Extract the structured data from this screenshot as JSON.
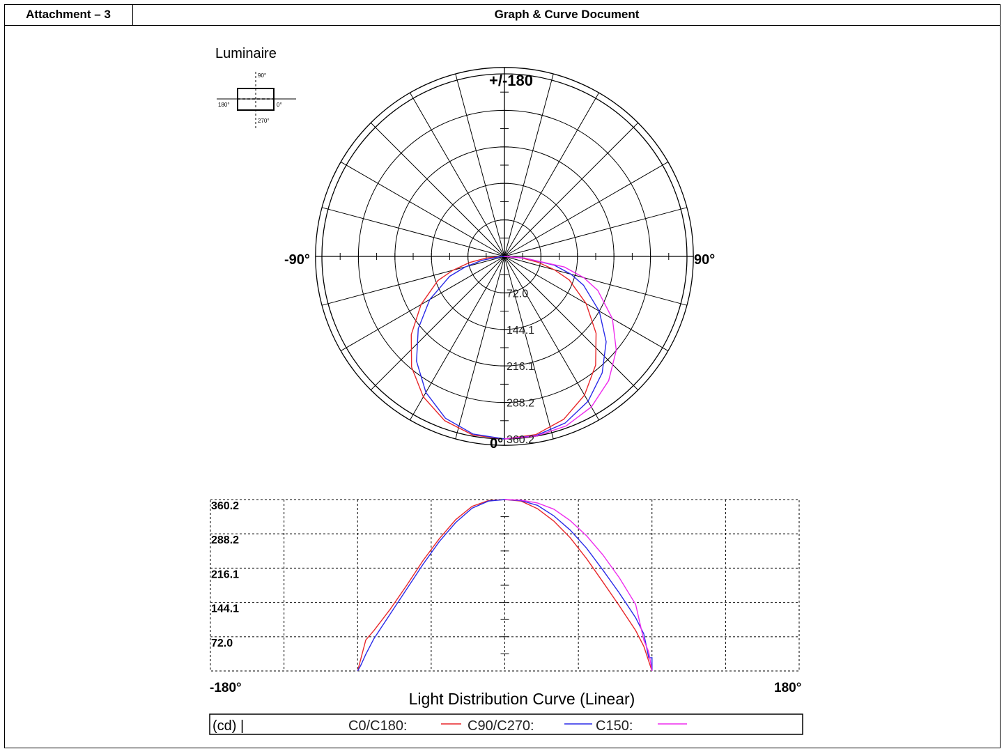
{
  "header": {
    "attachment": "Attachment – 3",
    "title": "Graph & Curve Document"
  },
  "luminaire": {
    "title": "Luminaire",
    "angles": [
      "90°",
      "180°",
      "0°",
      "270°"
    ]
  },
  "colors": {
    "c0_c180": "#e8272a",
    "c90_c270": "#2a2ae8",
    "c150": "#ee2bee"
  },
  "chart_data": [
    {
      "type": "polar",
      "name": "polar-intensity",
      "angle_labels": {
        "top": "+/-180",
        "left": "-90°",
        "right": "90°",
        "bottom": "0°"
      },
      "rings": [
        72.0,
        144.1,
        216.1,
        288.2,
        360.2
      ],
      "ring_labels": [
        "72.0",
        "144.1",
        "216.1",
        "288.2",
        "360.2"
      ],
      "spoke_step_deg": 15,
      "units": "cd",
      "series": [
        {
          "name": "C0/C180",
          "color_key": "c0_c180",
          "points": [
            [
              -90,
              0
            ],
            [
              -85,
              35
            ],
            [
              -80,
              70
            ],
            [
              -75,
              105
            ],
            [
              -70,
              140
            ],
            [
              -60,
              190
            ],
            [
              -50,
              240
            ],
            [
              -40,
              285
            ],
            [
              -30,
              320
            ],
            [
              -20,
              345
            ],
            [
              -10,
              358
            ],
            [
              0,
              360.2
            ],
            [
              10,
              357
            ],
            [
              20,
              342
            ],
            [
              30,
              316
            ],
            [
              40,
              280
            ],
            [
              50,
              236
            ],
            [
              60,
              186
            ],
            [
              70,
              136
            ],
            [
              75,
              102
            ],
            [
              80,
              68
            ],
            [
              85,
              34
            ],
            [
              90,
              0
            ]
          ]
        },
        {
          "name": "C90/C270",
          "color_key": "c90_c270",
          "points": [
            [
              -90,
              0
            ],
            [
              -85,
              10
            ],
            [
              -80,
              45
            ],
            [
              -75,
              80
            ],
            [
              -70,
              115
            ],
            [
              -60,
              170
            ],
            [
              -50,
              222
            ],
            [
              -40,
              270
            ],
            [
              -30,
              310
            ],
            [
              -20,
              340
            ],
            [
              -10,
              356
            ],
            [
              0,
              360.2
            ],
            [
              10,
              359
            ],
            [
              20,
              350
            ],
            [
              30,
              330
            ],
            [
              40,
              300
            ],
            [
              50,
              262
            ],
            [
              60,
              216
            ],
            [
              70,
              166
            ],
            [
              75,
              136
            ],
            [
              80,
              100
            ],
            [
              85,
              40
            ],
            [
              90,
              0
            ]
          ]
        },
        {
          "name": "C150",
          "color_key": "c150",
          "points": [
            [
              0,
              360.2
            ],
            [
              10,
              360
            ],
            [
              20,
              356
            ],
            [
              30,
              343
            ],
            [
              40,
              320
            ],
            [
              50,
              288
            ],
            [
              60,
              246
            ],
            [
              70,
              196
            ],
            [
              75,
              162
            ],
            [
              80,
              120
            ],
            [
              85,
              40
            ],
            [
              90,
              0
            ]
          ]
        }
      ]
    },
    {
      "type": "line",
      "name": "linear-distribution",
      "title": "Light Distribution Curve (Linear)",
      "xlabel_left": "-180°",
      "xlabel_right": "180°",
      "xlim": [
        -180,
        180
      ],
      "ylim": [
        0,
        360.2
      ],
      "y_ticks": [
        72.0,
        144.1,
        216.1,
        288.2,
        360.2
      ],
      "y_tick_labels": [
        "72.0",
        "144.1",
        "216.1",
        "288.2",
        "360.2"
      ],
      "grid": true,
      "legend": {
        "unit": "(cd) |",
        "entries": [
          "C0/C180:",
          "C90/C270:",
          "C150:"
        ]
      }
    }
  ]
}
